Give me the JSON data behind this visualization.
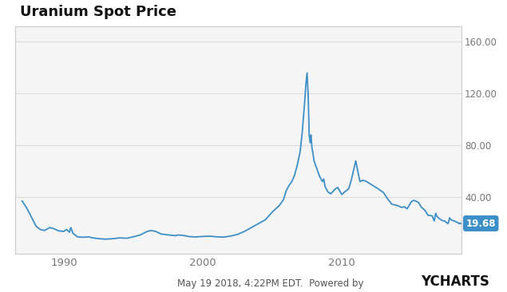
{
  "title": "Uranium Spot Price",
  "title_fontsize": 13,
  "title_fontweight": "bold",
  "line_color": "#3d8fc7",
  "plot_bg_color": "#f5f5f5",
  "outer_bg_color": "#ffffff",
  "border_color": "#cccccc",
  "ylabel_right_ticks": [
    0,
    40,
    80,
    120,
    160
  ],
  "ylabel_right_labels": [
    "",
    "40.00",
    "80.00",
    "120.00",
    "160.00"
  ],
  "xlabel_ticks": [
    1990,
    2000,
    2010
  ],
  "xlim": [
    1986.5,
    2018.6
  ],
  "ylim": [
    -4,
    172
  ],
  "last_value": "19.68",
  "last_value_bg": "#3d8fc7",
  "last_value_color": "#ffffff",
  "footer_text": "May 19 2018, 4:22PM EDT.  Powered by ",
  "footer_brand": "YCHARTS",
  "footer_fontsize": 8.5,
  "footer_brand_fontsize": 12,
  "grid_color": "#dddddd",
  "tick_color": "#777777",
  "data_points": [
    [
      1987.0,
      37.0
    ],
    [
      1987.3,
      32.0
    ],
    [
      1987.6,
      26.0
    ],
    [
      1988.0,
      17.5
    ],
    [
      1988.3,
      15.0
    ],
    [
      1988.6,
      14.2
    ],
    [
      1989.0,
      16.5
    ],
    [
      1989.3,
      15.5
    ],
    [
      1989.6,
      14.0
    ],
    [
      1990.0,
      13.5
    ],
    [
      1990.2,
      15.0
    ],
    [
      1990.4,
      12.8
    ],
    [
      1990.5,
      16.5
    ],
    [
      1990.65,
      12.0
    ],
    [
      1991.0,
      9.2
    ],
    [
      1991.4,
      9.0
    ],
    [
      1991.8,
      9.3
    ],
    [
      1992.0,
      8.6
    ],
    [
      1992.5,
      7.9
    ],
    [
      1993.0,
      7.5
    ],
    [
      1993.5,
      7.8
    ],
    [
      1994.0,
      8.5
    ],
    [
      1994.5,
      8.2
    ],
    [
      1995.0,
      9.3
    ],
    [
      1995.5,
      10.8
    ],
    [
      1996.0,
      13.5
    ],
    [
      1996.3,
      14.2
    ],
    [
      1996.6,
      13.5
    ],
    [
      1997.0,
      11.5
    ],
    [
      1997.5,
      10.8
    ],
    [
      1998.0,
      10.2
    ],
    [
      1998.25,
      10.7
    ],
    [
      1998.5,
      10.5
    ],
    [
      1998.75,
      10.1
    ],
    [
      1999.0,
      9.5
    ],
    [
      1999.5,
      9.2
    ],
    [
      2000.0,
      9.6
    ],
    [
      2000.5,
      9.8
    ],
    [
      2001.0,
      9.3
    ],
    [
      2001.5,
      9.1
    ],
    [
      2002.0,
      9.9
    ],
    [
      2002.5,
      11.2
    ],
    [
      2003.0,
      13.5
    ],
    [
      2003.5,
      16.5
    ],
    [
      2004.0,
      19.5
    ],
    [
      2004.5,
      22.5
    ],
    [
      2005.0,
      28.5
    ],
    [
      2005.5,
      33.5
    ],
    [
      2005.8,
      38.0
    ],
    [
      2006.0,
      45.0
    ],
    [
      2006.2,
      49.0
    ],
    [
      2006.4,
      52.0
    ],
    [
      2006.6,
      57.0
    ],
    [
      2006.8,
      65.0
    ],
    [
      2007.0,
      75.0
    ],
    [
      2007.15,
      90.0
    ],
    [
      2007.3,
      110.0
    ],
    [
      2007.42,
      128.0
    ],
    [
      2007.5,
      136.0
    ],
    [
      2007.58,
      118.0
    ],
    [
      2007.65,
      88.0
    ],
    [
      2007.72,
      82.0
    ],
    [
      2007.78,
      88.0
    ],
    [
      2007.85,
      78.0
    ],
    [
      2007.92,
      74.0
    ],
    [
      2008.0,
      68.0
    ],
    [
      2008.2,
      62.0
    ],
    [
      2008.4,
      56.0
    ],
    [
      2008.6,
      52.0
    ],
    [
      2008.7,
      54.0
    ],
    [
      2008.8,
      48.0
    ],
    [
      2009.0,
      44.0
    ],
    [
      2009.2,
      42.5
    ],
    [
      2009.5,
      46.0
    ],
    [
      2009.7,
      47.5
    ],
    [
      2010.0,
      42.0
    ],
    [
      2010.2,
      44.0
    ],
    [
      2010.5,
      46.5
    ],
    [
      2010.7,
      54.0
    ],
    [
      2011.0,
      68.0
    ],
    [
      2011.15,
      60.0
    ],
    [
      2011.3,
      52.0
    ],
    [
      2011.5,
      53.0
    ],
    [
      2011.7,
      52.5
    ],
    [
      2012.0,
      50.5
    ],
    [
      2012.3,
      48.5
    ],
    [
      2012.6,
      46.5
    ],
    [
      2013.0,
      43.5
    ],
    [
      2013.3,
      38.5
    ],
    [
      2013.6,
      34.5
    ],
    [
      2014.0,
      33.5
    ],
    [
      2014.3,
      32.0
    ],
    [
      2014.5,
      32.5
    ],
    [
      2014.7,
      31.0
    ],
    [
      2015.0,
      36.5
    ],
    [
      2015.2,
      37.5
    ],
    [
      2015.5,
      36.0
    ],
    [
      2015.7,
      32.5
    ],
    [
      2016.0,
      29.5
    ],
    [
      2016.2,
      26.0
    ],
    [
      2016.5,
      25.5
    ],
    [
      2016.65,
      21.5
    ],
    [
      2016.75,
      27.5
    ],
    [
      2016.85,
      25.0
    ],
    [
      2017.0,
      23.5
    ],
    [
      2017.2,
      22.0
    ],
    [
      2017.4,
      21.5
    ],
    [
      2017.5,
      20.5
    ],
    [
      2017.65,
      19.5
    ],
    [
      2017.75,
      24.0
    ],
    [
      2017.85,
      22.5
    ],
    [
      2017.95,
      22.0
    ],
    [
      2018.1,
      21.5
    ],
    [
      2018.3,
      20.5
    ],
    [
      2018.42,
      19.68
    ]
  ]
}
